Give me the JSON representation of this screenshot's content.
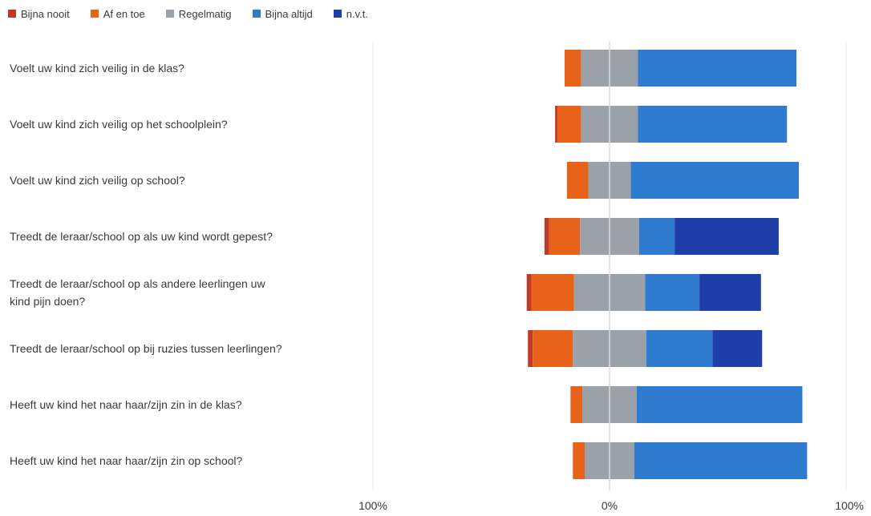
{
  "chart_data": {
    "type": "bar",
    "subtype": "diverging-stacked-horizontal",
    "legend_position": "top-left",
    "grid": true,
    "xlim": [
      -100,
      100
    ],
    "x_ticks": [
      "100%",
      "0%",
      "100%"
    ],
    "series": [
      {
        "name": "Bijna nooit",
        "color": "#c0392b"
      },
      {
        "name": "Af en toe",
        "color": "#e8621a"
      },
      {
        "name": "Regelmatig",
        "color": "#9aa1a8"
      },
      {
        "name": "Bijna altijd",
        "color": "#2f7bd0"
      },
      {
        "name": "n.v.t.",
        "color": "#1f3fa8"
      }
    ],
    "categories": [
      "Voelt uw kind zich veilig in de klas?",
      "Voelt uw kind zich veilig op het schoolplein?",
      "Voelt uw kind zich veilig op  school?",
      "Treedt de leraar/school op als uw kind wordt gepest?",
      "Treedt de leraar/school op als andere leerlingen uw kind pijn doen?",
      "Treedt de leraar/school op bij ruzies tussen leerlingen?",
      "Heeft uw kind het naar haar/zijn zin in de klas?",
      "Heeft uw kind het naar haar/zijn zin op school?"
    ],
    "category_lines": [
      [
        "Voelt uw kind zich veilig in de klas?"
      ],
      [
        "Voelt uw kind zich veilig op het schoolplein?"
      ],
      [
        "Voelt uw kind zich veilig op  school?"
      ],
      [
        "Treedt de leraar/school op als uw kind wordt gepest?"
      ],
      [
        "Treedt de leraar/school op als andere leerlingen uw",
        "kind pijn doen?"
      ],
      [
        "Treedt de leraar/school op bij ruzies tussen leerlingen?"
      ],
      [
        "Heeft uw kind het naar haar/zijn zin in de klas?"
      ],
      [
        "Heeft uw kind het naar haar/zijn zin op school?"
      ]
    ],
    "values": [
      [
        0,
        7,
        24,
        67,
        0
      ],
      [
        1,
        10,
        24,
        63,
        0
      ],
      [
        0,
        9,
        18,
        71,
        0
      ],
      [
        2,
        13,
        25,
        15,
        44
      ],
      [
        2,
        18,
        30,
        23,
        26
      ],
      [
        2,
        17,
        31,
        28,
        21
      ],
      [
        0,
        5,
        23,
        70,
        0
      ],
      [
        0,
        5,
        21,
        73,
        0
      ]
    ]
  }
}
